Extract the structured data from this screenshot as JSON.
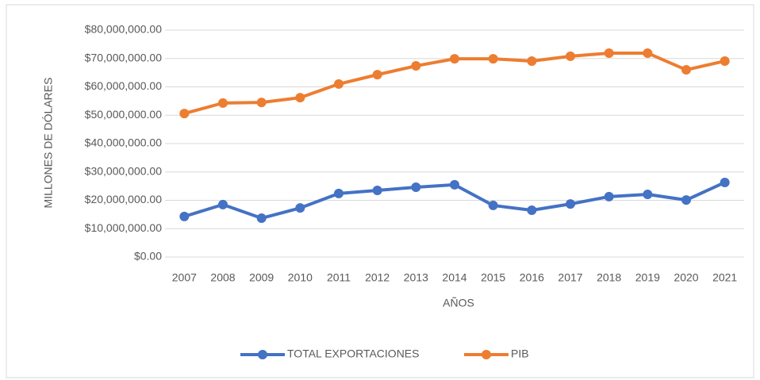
{
  "chart_data": {
    "type": "line",
    "x_label": "AÑOS",
    "y_label": "MILLONES DE DÓLARES",
    "categories": [
      "2007",
      "2008",
      "2009",
      "2010",
      "2011",
      "2012",
      "2013",
      "2014",
      "2015",
      "2016",
      "2017",
      "2018",
      "2019",
      "2020",
      "2021"
    ],
    "series": [
      {
        "name": "TOTAL EXPORTACIONES",
        "color": "#4472c4",
        "values": [
          14300000,
          18500000,
          13700000,
          17300000,
          22400000,
          23500000,
          24600000,
          25500000,
          18200000,
          16500000,
          18700000,
          21300000,
          22100000,
          20100000,
          26300000
        ]
      },
      {
        "name": "PIB",
        "color": "#ed7d31",
        "values": [
          50600000,
          54300000,
          54500000,
          56200000,
          61000000,
          64300000,
          67400000,
          69900000,
          69900000,
          69100000,
          70800000,
          71900000,
          71900000,
          66000000,
          69100000
        ]
      }
    ],
    "ylim": [
      0,
      80000000
    ],
    "yticks": [
      {
        "value": 0,
        "label": "$0.00"
      },
      {
        "value": 10000000,
        "label": "$10,000,000.00"
      },
      {
        "value": 20000000,
        "label": "$20,000,000.00"
      },
      {
        "value": 30000000,
        "label": "$30,000,000.00"
      },
      {
        "value": 40000000,
        "label": "$40,000,000.00"
      },
      {
        "value": 50000000,
        "label": "$50,000,000.00"
      },
      {
        "value": 60000000,
        "label": "$60,000,000.00"
      },
      {
        "value": 70000000,
        "label": "$70,000,000.00"
      },
      {
        "value": 80000000,
        "label": "$80,000,000.00"
      }
    ],
    "grid": true,
    "legend": "bottom"
  }
}
